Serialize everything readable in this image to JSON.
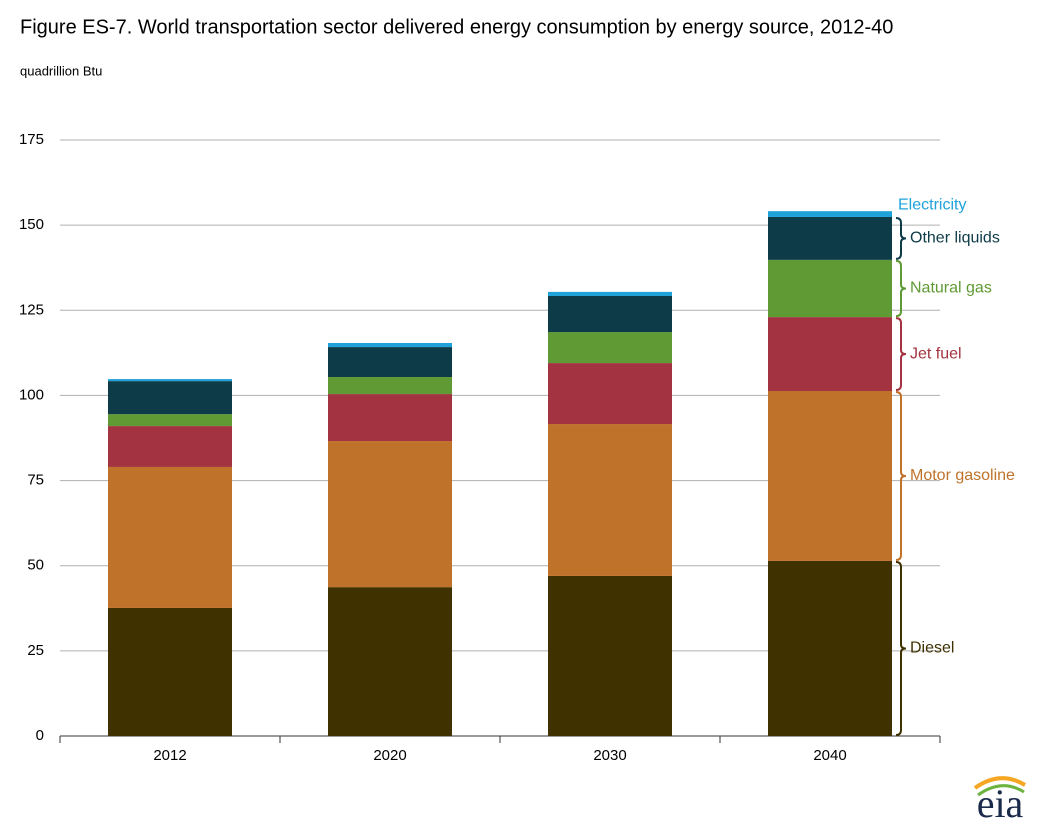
{
  "chart_data": {
    "type": "stacked-bar",
    "title": "Figure ES-7. World transportation sector delivered energy consumption by energy source, 2012-40",
    "subtitle": "quadrillion Btu",
    "categories": [
      "2012",
      "2020",
      "2030",
      "2040"
    ],
    "series": [
      {
        "name": "Diesel",
        "color": "#3f3100",
        "values": [
          37.6,
          43.7,
          47.0,
          51.4
        ]
      },
      {
        "name": "Motor gasoline",
        "color": "#bf722a",
        "values": [
          41.4,
          42.9,
          44.6,
          49.9
        ]
      },
      {
        "name": "Jet fuel",
        "color": "#a33340",
        "values": [
          12.0,
          13.8,
          17.9,
          21.7
        ]
      },
      {
        "name": "Natural gas",
        "color": "#5f9a34",
        "values": [
          3.5,
          5.0,
          9.1,
          16.8
        ]
      },
      {
        "name": "Other liquids",
        "color": "#0e3b48",
        "values": [
          9.7,
          8.8,
          10.6,
          12.6
        ]
      },
      {
        "name": "Electricity",
        "color": "#1fa2d9",
        "values": [
          0.6,
          1.2,
          1.2,
          1.7
        ]
      }
    ],
    "ylim": [
      0,
      175
    ],
    "yticks": [
      0,
      25,
      50,
      75,
      100,
      125,
      150,
      175
    ],
    "grid": true,
    "logo": "eia"
  }
}
